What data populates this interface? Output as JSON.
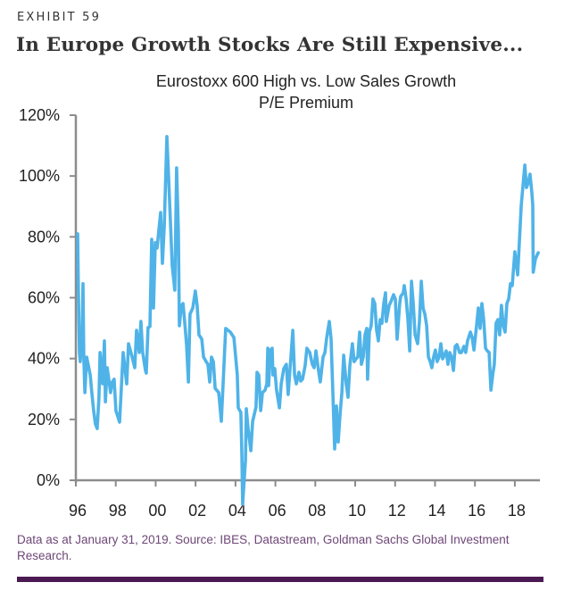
{
  "header": {
    "exhibit_label": "EXHIBIT 59",
    "title": "In Europe Growth Stocks Are Still Expensive..."
  },
  "footnote": "Data as at January 31, 2019. Source: IBES, Datastream, Goldman Sachs Global Investment Research.",
  "colors": {
    "line": "#4fb3e8",
    "axis": "#8c8c8c",
    "rule": "#4b1a52",
    "footnote": "#6e4777"
  },
  "chart_data": {
    "type": "line",
    "title": "Eurostoxx 600 High vs. Low Sales Growth",
    "subtitle": "P/E Premium",
    "xlabel": "",
    "ylabel": "",
    "xlim": [
      1996,
      2019.4
    ],
    "ylim": [
      0,
      120
    ],
    "grid": false,
    "legend": "none",
    "x_ticks": [
      {
        "value": 1996,
        "label": "96"
      },
      {
        "value": 1998,
        "label": "98"
      },
      {
        "value": 2000,
        "label": "00"
      },
      {
        "value": 2002,
        "label": "02"
      },
      {
        "value": 2004,
        "label": "04"
      },
      {
        "value": 2006,
        "label": "06"
      },
      {
        "value": 2008,
        "label": "08"
      },
      {
        "value": 2010,
        "label": "10"
      },
      {
        "value": 2012,
        "label": "12"
      },
      {
        "value": 2014,
        "label": "14"
      },
      {
        "value": 2016,
        "label": "16"
      },
      {
        "value": 2018,
        "label": "18"
      }
    ],
    "y_ticks": [
      {
        "value": 0,
        "label": "0%"
      },
      {
        "value": 20,
        "label": "20%"
      },
      {
        "value": 40,
        "label": "40%"
      },
      {
        "value": 60,
        "label": "60%"
      },
      {
        "value": 80,
        "label": "80%"
      },
      {
        "value": 100,
        "label": "100%"
      },
      {
        "value": 120,
        "label": "120%"
      }
    ],
    "series": [
      {
        "name": "P/E Premium",
        "unit": "%",
        "points": [
          [
            1996.09,
            81.0
          ],
          [
            1996.13,
            61.0
          ],
          [
            1996.18,
            42.0
          ],
          [
            1996.22,
            39.0
          ],
          [
            1996.31,
            46.4
          ],
          [
            1996.36,
            64.6
          ],
          [
            1996.4,
            40.5
          ],
          [
            1996.45,
            28.8
          ],
          [
            1996.54,
            40.5
          ],
          [
            1996.63,
            37.6
          ],
          [
            1996.72,
            34.6
          ],
          [
            1996.8,
            28.8
          ],
          [
            1996.89,
            22.9
          ],
          [
            1996.98,
            18.5
          ],
          [
            1997.07,
            17.0
          ],
          [
            1997.16,
            27.3
          ],
          [
            1997.21,
            42.0
          ],
          [
            1997.34,
            31.7
          ],
          [
            1997.43,
            45.8
          ],
          [
            1997.48,
            25.8
          ],
          [
            1997.57,
            37.0
          ],
          [
            1997.65,
            33.2
          ],
          [
            1997.74,
            28.8
          ],
          [
            1997.83,
            32.3
          ],
          [
            1997.92,
            33.2
          ],
          [
            1998.01,
            22.9
          ],
          [
            1998.19,
            19.1
          ],
          [
            1998.37,
            42.0
          ],
          [
            1998.55,
            31.7
          ],
          [
            1998.64,
            44.9
          ],
          [
            1998.82,
            40.5
          ],
          [
            1998.95,
            37.0
          ],
          [
            1999.04,
            49.3
          ],
          [
            1999.18,
            42.0
          ],
          [
            1999.26,
            52.2
          ],
          [
            1999.35,
            42.0
          ],
          [
            1999.49,
            36.1
          ],
          [
            1999.53,
            35.2
          ],
          [
            1999.62,
            50.2
          ],
          [
            1999.71,
            50.5
          ],
          [
            1999.8,
            79.2
          ],
          [
            1999.89,
            56.6
          ],
          [
            1999.98,
            78.1
          ],
          [
            2000.07,
            76.3
          ],
          [
            2000.25,
            88.0
          ],
          [
            2000.34,
            71.3
          ],
          [
            2000.43,
            83.6
          ],
          [
            2000.56,
            113.0
          ],
          [
            2000.65,
            99.2
          ],
          [
            2000.83,
            70.4
          ],
          [
            2000.96,
            62.5
          ],
          [
            2001.05,
            102.7
          ],
          [
            2001.14,
            81.6
          ],
          [
            2001.19,
            50.8
          ],
          [
            2001.28,
            57.2
          ],
          [
            2001.37,
            58.1
          ],
          [
            2001.46,
            51.6
          ],
          [
            2001.55,
            44.3
          ],
          [
            2001.64,
            32.3
          ],
          [
            2001.72,
            54.6
          ],
          [
            2001.86,
            56.6
          ],
          [
            2001.99,
            62.2
          ],
          [
            2002.08,
            57.5
          ],
          [
            2002.17,
            47.8
          ],
          [
            2002.31,
            46.4
          ],
          [
            2002.4,
            40.5
          ],
          [
            2002.53,
            39.0
          ],
          [
            2002.62,
            38.1
          ],
          [
            2002.71,
            32.3
          ],
          [
            2002.8,
            40.5
          ],
          [
            2002.89,
            39.0
          ],
          [
            2002.98,
            30.2
          ],
          [
            2003.16,
            28.8
          ],
          [
            2003.29,
            19.4
          ],
          [
            2003.38,
            31.7
          ],
          [
            2003.47,
            44.3
          ],
          [
            2003.51,
            49.9
          ],
          [
            2003.74,
            48.7
          ],
          [
            2003.92,
            46.9
          ],
          [
            2004.01,
            40.5
          ],
          [
            2004.09,
            34.6
          ],
          [
            2004.14,
            23.8
          ],
          [
            2004.27,
            22.3
          ],
          [
            2004.32,
            8.8
          ],
          [
            2004.36,
            -7.9
          ],
          [
            2004.5,
            6.7
          ],
          [
            2004.54,
            23.5
          ],
          [
            2004.63,
            17.0
          ],
          [
            2004.77,
            9.7
          ],
          [
            2004.86,
            19.4
          ],
          [
            2005.03,
            24.1
          ],
          [
            2005.08,
            35.5
          ],
          [
            2005.17,
            34.6
          ],
          [
            2005.26,
            22.9
          ],
          [
            2005.35,
            28.8
          ],
          [
            2005.48,
            29.6
          ],
          [
            2005.57,
            31.7
          ],
          [
            2005.62,
            43.4
          ],
          [
            2005.66,
            31.1
          ],
          [
            2005.75,
            42.8
          ],
          [
            2005.84,
            43.4
          ],
          [
            2005.88,
            34.6
          ],
          [
            2005.97,
            36.7
          ],
          [
            2006.06,
            29.6
          ],
          [
            2006.2,
            23.8
          ],
          [
            2006.29,
            31.7
          ],
          [
            2006.42,
            36.7
          ],
          [
            2006.55,
            38.1
          ],
          [
            2006.64,
            28.2
          ],
          [
            2006.78,
            40.5
          ],
          [
            2006.87,
            49.3
          ],
          [
            2006.96,
            34.6
          ],
          [
            2007.05,
            31.7
          ],
          [
            2007.18,
            35.5
          ],
          [
            2007.27,
            32.6
          ],
          [
            2007.36,
            33.2
          ],
          [
            2007.49,
            37.6
          ],
          [
            2007.58,
            43.4
          ],
          [
            2007.72,
            42.0
          ],
          [
            2007.85,
            38.1
          ],
          [
            2007.94,
            37.0
          ],
          [
            2008.03,
            42.5
          ],
          [
            2008.16,
            36.1
          ],
          [
            2008.25,
            32.3
          ],
          [
            2008.39,
            40.5
          ],
          [
            2008.48,
            42.0
          ],
          [
            2008.57,
            46.9
          ],
          [
            2008.7,
            52.2
          ],
          [
            2008.79,
            46.4
          ],
          [
            2008.88,
            28.8
          ],
          [
            2008.97,
            10.3
          ],
          [
            2009.06,
            24.4
          ],
          [
            2009.15,
            12.6
          ],
          [
            2009.24,
            21.4
          ],
          [
            2009.33,
            28.8
          ],
          [
            2009.42,
            41.1
          ],
          [
            2009.55,
            31.7
          ],
          [
            2009.64,
            27.3
          ],
          [
            2009.73,
            37.6
          ],
          [
            2009.86,
            44.9
          ],
          [
            2009.95,
            39.0
          ],
          [
            2010.04,
            39.9
          ],
          [
            2010.13,
            40.5
          ],
          [
            2010.22,
            48.7
          ],
          [
            2010.31,
            38.1
          ],
          [
            2010.4,
            40.5
          ],
          [
            2010.49,
            47.8
          ],
          [
            2010.58,
            49.9
          ],
          [
            2010.62,
            33.2
          ],
          [
            2010.71,
            48.7
          ],
          [
            2010.8,
            50.8
          ],
          [
            2010.89,
            59.6
          ],
          [
            2010.98,
            58.1
          ],
          [
            2011.07,
            49.3
          ],
          [
            2011.16,
            45.8
          ],
          [
            2011.25,
            52.8
          ],
          [
            2011.34,
            51.6
          ],
          [
            2011.43,
            58.1
          ],
          [
            2011.52,
            61.6
          ],
          [
            2011.56,
            52.2
          ],
          [
            2011.7,
            57.5
          ],
          [
            2011.79,
            58.7
          ],
          [
            2011.92,
            61.0
          ],
          [
            2012.01,
            59.6
          ],
          [
            2012.1,
            46.4
          ],
          [
            2012.23,
            58.1
          ],
          [
            2012.28,
            60.4
          ],
          [
            2012.41,
            61.6
          ],
          [
            2012.46,
            64.0
          ],
          [
            2012.55,
            59.6
          ],
          [
            2012.64,
            52.8
          ],
          [
            2012.73,
            42.5
          ],
          [
            2012.82,
            65.4
          ],
          [
            2012.91,
            58.1
          ],
          [
            2013.0,
            47.8
          ],
          [
            2013.13,
            44.9
          ],
          [
            2013.22,
            52.2
          ],
          [
            2013.31,
            65.4
          ],
          [
            2013.4,
            56.6
          ],
          [
            2013.49,
            54.6
          ],
          [
            2013.58,
            50.8
          ],
          [
            2013.67,
            40.5
          ],
          [
            2013.76,
            39.0
          ],
          [
            2013.84,
            37.0
          ],
          [
            2013.93,
            40.5
          ],
          [
            2014.02,
            42.8
          ],
          [
            2014.11,
            39.0
          ],
          [
            2014.2,
            40.5
          ],
          [
            2014.29,
            44.9
          ],
          [
            2014.38,
            39.9
          ],
          [
            2014.47,
            41.1
          ],
          [
            2014.56,
            42.5
          ],
          [
            2014.65,
            38.1
          ],
          [
            2014.74,
            42.0
          ],
          [
            2014.83,
            40.5
          ],
          [
            2014.92,
            36.1
          ],
          [
            2015.01,
            44.0
          ],
          [
            2015.1,
            44.6
          ],
          [
            2015.23,
            42.0
          ],
          [
            2015.32,
            42.0
          ],
          [
            2015.45,
            44.0
          ],
          [
            2015.54,
            42.0
          ],
          [
            2015.63,
            45.8
          ],
          [
            2015.77,
            48.7
          ],
          [
            2015.86,
            46.9
          ],
          [
            2015.95,
            42.8
          ],
          [
            2016.08,
            50.8
          ],
          [
            2016.17,
            56.6
          ],
          [
            2016.26,
            49.9
          ],
          [
            2016.35,
            58.1
          ],
          [
            2016.44,
            52.8
          ],
          [
            2016.53,
            43.4
          ],
          [
            2016.62,
            42.5
          ],
          [
            2016.71,
            42.0
          ],
          [
            2016.8,
            29.6
          ],
          [
            2016.89,
            34.6
          ],
          [
            2016.97,
            38.1
          ],
          [
            2017.06,
            51.6
          ],
          [
            2017.15,
            52.8
          ],
          [
            2017.24,
            47.8
          ],
          [
            2017.33,
            57.5
          ],
          [
            2017.42,
            50.8
          ],
          [
            2017.51,
            48.7
          ],
          [
            2017.6,
            58.1
          ],
          [
            2017.69,
            59.6
          ],
          [
            2017.78,
            64.6
          ],
          [
            2017.87,
            64.0
          ],
          [
            2018.0,
            75.1
          ],
          [
            2018.14,
            67.5
          ],
          [
            2018.32,
            90.4
          ],
          [
            2018.5,
            103.6
          ],
          [
            2018.58,
            96.2
          ],
          [
            2018.67,
            97.7
          ],
          [
            2018.76,
            100.6
          ],
          [
            2018.85,
            94.8
          ],
          [
            2018.9,
            90.4
          ],
          [
            2018.92,
            68.4
          ],
          [
            2019.03,
            72.8
          ],
          [
            2019.17,
            74.8
          ]
        ]
      }
    ]
  }
}
